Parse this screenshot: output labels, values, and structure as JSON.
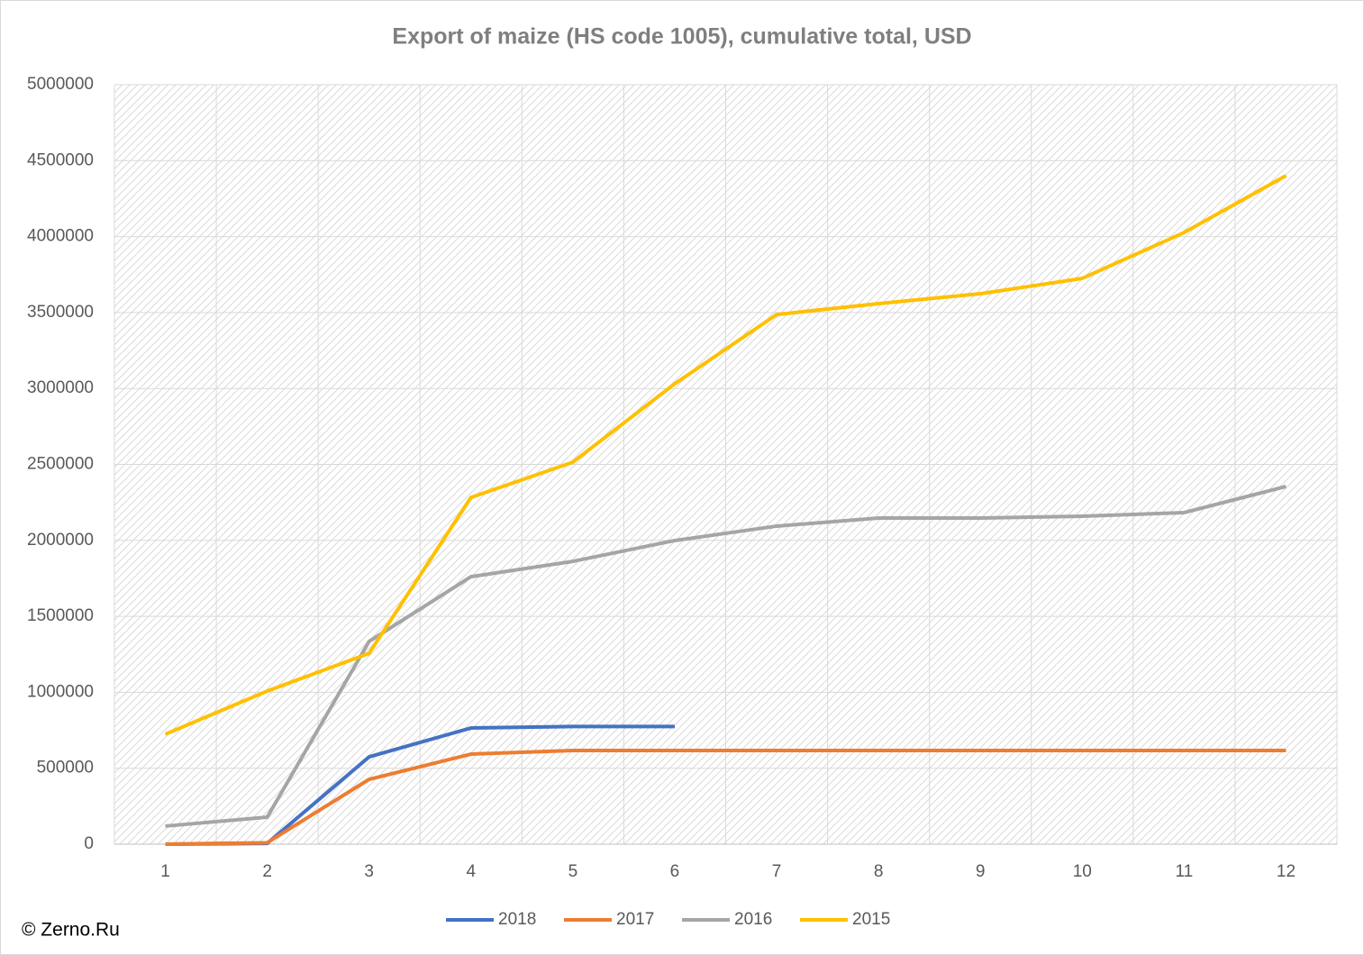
{
  "chart_data": {
    "type": "line",
    "title": "Export of maize (HS code 1005), cumulative total, USD",
    "source": "© Zerno.Ru",
    "categories": [
      "1",
      "2",
      "3",
      "4",
      "5",
      "6",
      "7",
      "8",
      "9",
      "10",
      "11",
      "12"
    ],
    "series": [
      {
        "name": "2018",
        "color": "#4472c4",
        "values": [
          0,
          5000,
          575000,
          765000,
          775000,
          775000,
          null,
          null,
          null,
          null,
          null,
          null
        ]
      },
      {
        "name": "2017",
        "color": "#ed7d31",
        "values": [
          0,
          10000,
          427000,
          593000,
          617000,
          617000,
          617000,
          617000,
          617000,
          617000,
          617000,
          617000
        ]
      },
      {
        "name": "2016",
        "color": "#a5a5a5",
        "values": [
          119000,
          178000,
          1335000,
          1761000,
          1862000,
          1999000,
          2094000,
          2147000,
          2147000,
          2159000,
          2183000,
          2355000
        ]
      },
      {
        "name": "2015",
        "color": "#ffc000",
        "values": [
          724000,
          1008000,
          1257000,
          2283000,
          2515000,
          3031000,
          3487000,
          3559000,
          3624000,
          3725000,
          4027000,
          4401000
        ]
      }
    ],
    "ylim": [
      0,
      5000000
    ],
    "yticks": [
      0,
      500000,
      1000000,
      1500000,
      2000000,
      2500000,
      3000000,
      3500000,
      4000000,
      4500000,
      5000000
    ],
    "grid": true,
    "legend": "bottom"
  }
}
